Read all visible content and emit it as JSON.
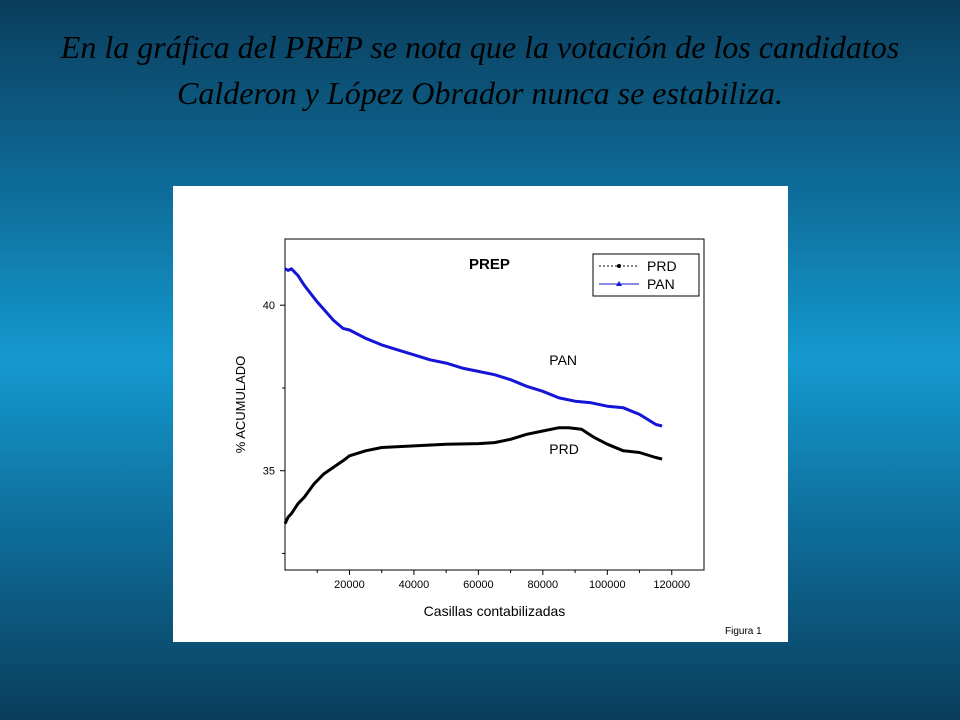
{
  "slide": {
    "title": "En la gráfica del PREP se nota que la votación de los candidatos Calderon y López Obrador nunca se estabiliza."
  },
  "figure": {
    "caption": "Figura 1"
  },
  "colors": {
    "background_top": "#0a3d5c",
    "background_mid": "#1499cf",
    "pan": "#1515d8",
    "prd": "#000000"
  },
  "chart_data": {
    "type": "line",
    "title": "PREP",
    "xlabel": "Casillas contabilizadas",
    "ylabel": "% ACUMULADO",
    "xlim": [
      0,
      130000
    ],
    "ylim": [
      32,
      42
    ],
    "x_ticks": [
      20000,
      40000,
      60000,
      80000,
      100000,
      120000
    ],
    "y_ticks": [
      35,
      40
    ],
    "grid": false,
    "legend": {
      "position": "top-right",
      "entries": [
        "PRD",
        "PAN"
      ]
    },
    "annotations": [
      {
        "text": "PAN",
        "x": 82000,
        "y": 38.2
      },
      {
        "text": "PRD",
        "x": 82000,
        "y": 35.5
      }
    ],
    "series": [
      {
        "name": "PAN",
        "x": [
          0,
          1000,
          2000,
          4000,
          6000,
          10000,
          15000,
          18000,
          20000,
          25000,
          30000,
          35000,
          40000,
          45000,
          50000,
          55000,
          60000,
          65000,
          70000,
          75000,
          80000,
          85000,
          90000,
          95000,
          100000,
          105000,
          110000,
          115000,
          117000
        ],
        "values": [
          41.1,
          41.05,
          41.1,
          40.9,
          40.6,
          40.1,
          39.55,
          39.3,
          39.25,
          39.0,
          38.8,
          38.65,
          38.5,
          38.35,
          38.25,
          38.1,
          38.0,
          37.9,
          37.75,
          37.55,
          37.4,
          37.2,
          37.1,
          37.05,
          36.95,
          36.9,
          36.7,
          36.4,
          36.35
        ]
      },
      {
        "name": "PRD",
        "x": [
          0,
          1000,
          2000,
          4000,
          6000,
          9000,
          12000,
          15000,
          18000,
          20000,
          25000,
          30000,
          40000,
          50000,
          60000,
          65000,
          70000,
          75000,
          80000,
          85000,
          88000,
          92000,
          96000,
          100000,
          105000,
          110000,
          115000,
          117000
        ],
        "values": [
          33.4,
          33.6,
          33.7,
          34.0,
          34.2,
          34.6,
          34.9,
          35.1,
          35.3,
          35.45,
          35.6,
          35.7,
          35.75,
          35.8,
          35.82,
          35.85,
          35.95,
          36.1,
          36.2,
          36.3,
          36.3,
          36.25,
          36.0,
          35.8,
          35.6,
          35.55,
          35.4,
          35.35
        ]
      }
    ]
  }
}
